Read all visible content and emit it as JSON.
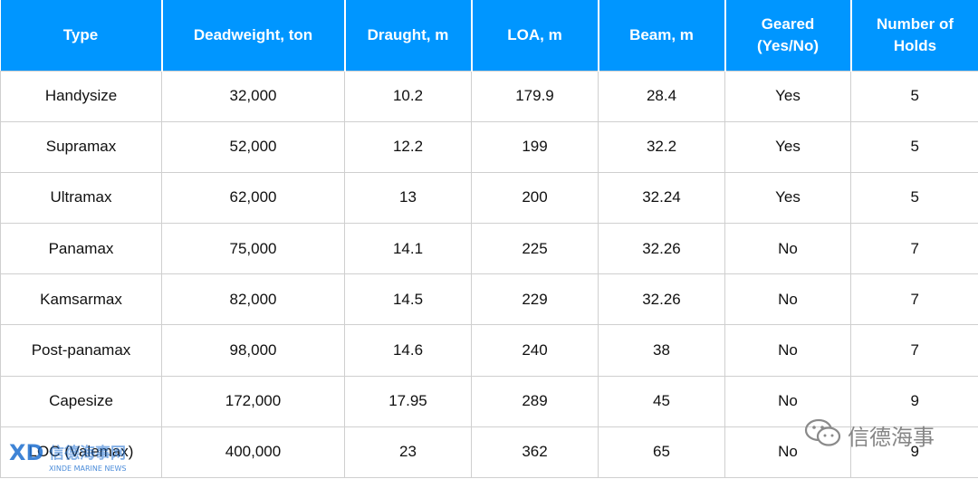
{
  "table": {
    "headers": [
      [
        "Type"
      ],
      [
        "Deadweight, ton"
      ],
      [
        "Draught, m"
      ],
      [
        "LOA, m"
      ],
      [
        "Beam, m"
      ],
      [
        "Geared",
        "(Yes/No)"
      ],
      [
        "Number of",
        "Holds"
      ]
    ],
    "rows": [
      [
        "Handysize",
        "32,000",
        "10.2",
        "179.9",
        "28.4",
        "Yes",
        "5"
      ],
      [
        "Supramax",
        "52,000",
        "12.2",
        "199",
        "32.2",
        "Yes",
        "5"
      ],
      [
        "Ultramax",
        "62,000",
        "13",
        "200",
        "32.24",
        "Yes",
        "5"
      ],
      [
        "Panamax",
        "75,000",
        "14.1",
        "225",
        "32.26",
        "No",
        "7"
      ],
      [
        "Kamsarmax",
        "82,000",
        "14.5",
        "229",
        "32.26",
        "No",
        "7"
      ],
      [
        "Post-panamax",
        "98,000",
        "14.6",
        "240",
        "38",
        "No",
        "7"
      ],
      [
        "Capesize",
        "172,000",
        "17.95",
        "289",
        "45",
        "No",
        "9"
      ],
      [
        "LOC (Valemax)",
        "400,000",
        "23",
        "362",
        "65",
        "No",
        "9"
      ]
    ]
  },
  "watermarks": {
    "left_logo_text": "XD 信德海事网",
    "left_subtitle": "XINDE MARINE NEWS",
    "right_text": "信德海事",
    "right_icon": "wechat-icon"
  },
  "colors": {
    "header_bg": "#0096ff",
    "header_text": "#ffffff",
    "grid": "#cfcfcf"
  }
}
